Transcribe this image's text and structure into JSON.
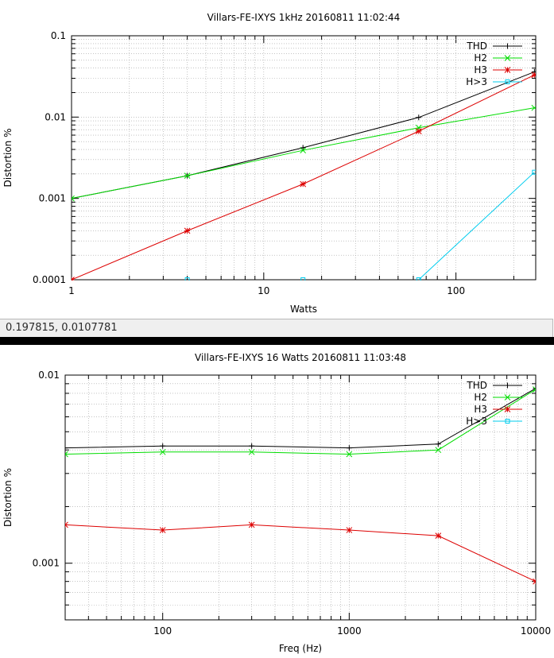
{
  "status_bar": {
    "readout": "0.197815,  0.0107781"
  },
  "chart_data": [
    {
      "type": "line",
      "title": "Villars-FE-IXYS 1kHz 20160811 11:02:44",
      "xlabel": "Watts",
      "ylabel": "Distortion %",
      "xscale": "log",
      "yscale": "log",
      "xlim": [
        1,
        260
      ],
      "ylim": [
        0.0001,
        0.1
      ],
      "xticks": [
        {
          "v": 1,
          "label": "1"
        },
        {
          "v": 10,
          "label": "10"
        },
        {
          "v": 100,
          "label": "100"
        }
      ],
      "yticks": [
        {
          "v": 0.0001,
          "label": "0.0001"
        },
        {
          "v": 0.001,
          "label": "0.001"
        },
        {
          "v": 0.01,
          "label": "0.01"
        },
        {
          "v": 0.1,
          "label": "0.1"
        }
      ],
      "grid": true,
      "legend": "top-right",
      "series": [
        {
          "name": "THD",
          "color": "#000000",
          "marker": "plus",
          "x": [
            1,
            4,
            16,
            64,
            256
          ],
          "y": [
            0.001,
            0.0019,
            0.0042,
            0.0099,
            0.036
          ]
        },
        {
          "name": "H2",
          "color": "#00dd00",
          "marker": "cross",
          "x": [
            1,
            4,
            16,
            64,
            256
          ],
          "y": [
            0.001,
            0.0019,
            0.0039,
            0.0074,
            0.013
          ]
        },
        {
          "name": "H3",
          "color": "#dd0000",
          "marker": "star",
          "x": [
            1,
            4,
            16,
            64,
            256
          ],
          "y": [
            0.0001,
            0.0004,
            0.0015,
            0.0067,
            0.033
          ]
        },
        {
          "name": "H>3",
          "color": "#00ccee",
          "marker": "square",
          "x": [
            4,
            16,
            64,
            256
          ],
          "y": [
            0.0001,
            0.0001,
            0.0001,
            0.0021
          ],
          "line_from": 2
        }
      ]
    },
    {
      "type": "line",
      "title": "Villars-FE-IXYS 16 Watts 20160811 11:03:48",
      "xlabel": "Freq (Hz)",
      "ylabel": "Distortion %",
      "xscale": "log",
      "yscale": "log",
      "xlim": [
        30,
        10000
      ],
      "ylim": [
        0.0005,
        0.01
      ],
      "xticks": [
        {
          "v": 100,
          "label": "100"
        },
        {
          "v": 1000,
          "label": "1000"
        },
        {
          "v": 10000,
          "label": "10000"
        }
      ],
      "yticks": [
        {
          "v": 0.001,
          "label": "0.001"
        },
        {
          "v": 0.01,
          "label": "0.01"
        }
      ],
      "grid": true,
      "legend": "top-right",
      "series": [
        {
          "name": "THD",
          "color": "#000000",
          "marker": "plus",
          "x": [
            30,
            100,
            300,
            1000,
            3000,
            10000
          ],
          "y": [
            0.0041,
            0.0042,
            0.0042,
            0.0041,
            0.0043,
            0.0085
          ]
        },
        {
          "name": "H2",
          "color": "#00dd00",
          "marker": "cross",
          "x": [
            30,
            100,
            300,
            1000,
            3000,
            10000
          ],
          "y": [
            0.0038,
            0.0039,
            0.0039,
            0.0038,
            0.004,
            0.0084
          ]
        },
        {
          "name": "H3",
          "color": "#dd0000",
          "marker": "star",
          "x": [
            30,
            100,
            300,
            1000,
            3000,
            10000
          ],
          "y": [
            0.0016,
            0.0015,
            0.0016,
            0.0015,
            0.0014,
            0.0008
          ]
        },
        {
          "name": "H>3",
          "color": "#00ccee",
          "marker": "square",
          "x": [],
          "y": []
        }
      ]
    }
  ]
}
